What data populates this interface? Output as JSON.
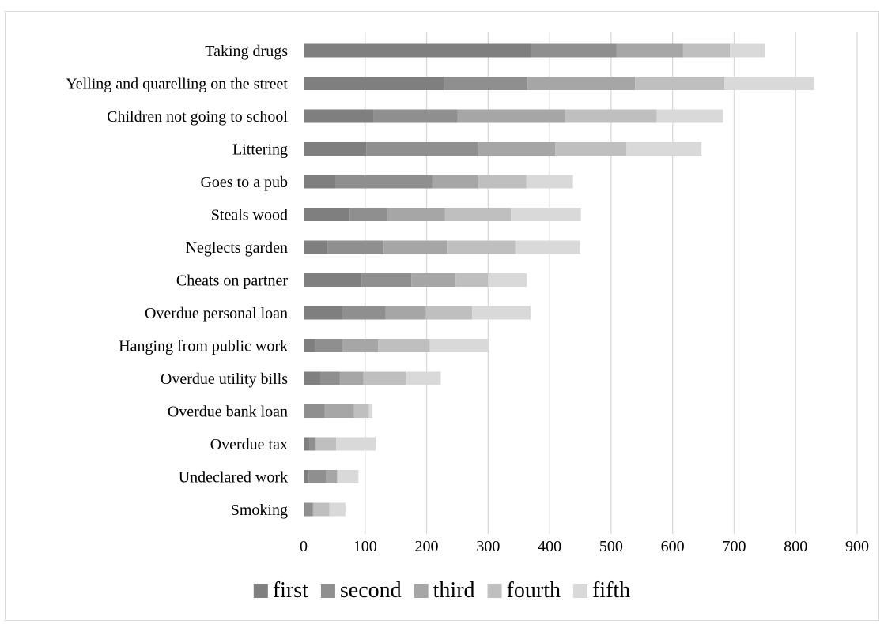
{
  "chart_data": {
    "type": "bar",
    "orientation": "horizontal",
    "stacked": true,
    "title": "",
    "xlabel": "",
    "ylabel": "",
    "xlim": [
      0,
      900
    ],
    "x_ticks": [
      0,
      100,
      200,
      300,
      400,
      500,
      600,
      700,
      800,
      900
    ],
    "grid": "vertical gridlines",
    "legend_position": "bottom",
    "categories": [
      "Taking drugs",
      "Yelling and quarelling on the street",
      "Children not going to school",
      "Littering",
      "Goes to a pub",
      "Steals wood",
      "Neglects garden",
      "Cheats on partner",
      "Overdue personal loan",
      "Hanging from public work",
      "Overdue utility bills",
      "Overdue bank loan",
      "Overdue tax",
      "Undeclared work",
      "Smoking"
    ],
    "series": [
      {
        "name": "first",
        "color": "#7f7f7f",
        "values": [
          369,
          228,
          114,
          102,
          52,
          75,
          39,
          94,
          63,
          18,
          27,
          1,
          10,
          8,
          2
        ]
      },
      {
        "name": "second",
        "color": "#8f8f8f",
        "values": [
          140,
          136,
          136,
          181,
          157,
          61,
          91,
          81,
          70,
          45,
          32,
          33,
          8,
          28,
          13
        ]
      },
      {
        "name": "third",
        "color": "#a6a6a6",
        "values": [
          108,
          175,
          175,
          126,
          74,
          94,
          103,
          72,
          66,
          58,
          38,
          48,
          2,
          18,
          1
        ]
      },
      {
        "name": "fourth",
        "color": "#bfbfbf",
        "values": [
          76,
          145,
          149,
          116,
          79,
          107,
          111,
          53,
          75,
          84,
          69,
          24,
          33,
          1,
          26
        ]
      },
      {
        "name": "fifth",
        "color": "#d9d9d9",
        "values": [
          57,
          146,
          108,
          122,
          76,
          114,
          106,
          63,
          95,
          97,
          57,
          6,
          64,
          34,
          26
        ]
      }
    ]
  }
}
